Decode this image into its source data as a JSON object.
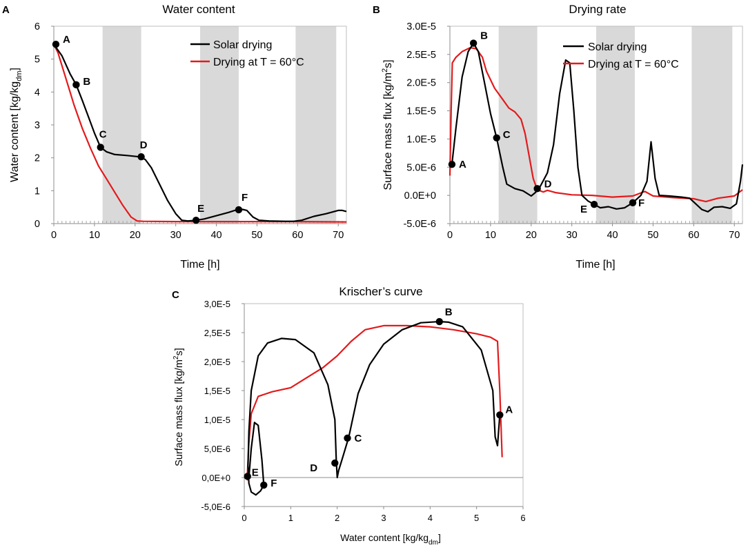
{
  "colors": {
    "solar": "#000000",
    "oven": "#e31a1c",
    "shade": "#d9d9d9"
  },
  "panel_letters": [
    "A",
    "B",
    "C"
  ],
  "legend": {
    "solar": "Solar drying",
    "oven": "Drying at T = 60°C"
  },
  "chart_data": [
    {
      "id": "A",
      "type": "line",
      "title": "Water content",
      "xlabel": "Time [h]",
      "ylabel_main": "Water content [kg/kg",
      "ylabel_sub": "dm",
      "ylabel_end": "]",
      "xlim": [
        0,
        72
      ],
      "ylim": [
        0,
        6
      ],
      "x_ticks": [
        0,
        10,
        20,
        30,
        40,
        50,
        60,
        70
      ],
      "y_ticks": [
        0,
        1,
        2,
        3,
        4,
        5,
        6
      ],
      "x_tick_labels": [
        "0",
        "10",
        "20",
        "30",
        "40",
        "50",
        "60",
        "70"
      ],
      "y_tick_labels": [
        "0",
        "1",
        "2",
        "3",
        "4",
        "5",
        "6"
      ],
      "night_bands": [
        [
          12,
          21.5
        ],
        [
          36,
          45.5
        ],
        [
          59.5,
          69.5
        ]
      ],
      "legend_position": "top-right",
      "series": [
        {
          "name": "Solar drying",
          "points": [
            [
              0,
              5.45
            ],
            [
              2,
              5.1
            ],
            [
              4,
              4.55
            ],
            [
              5.5,
              4.22
            ],
            [
              7,
              3.75
            ],
            [
              8.5,
              3.25
            ],
            [
              10,
              2.75
            ],
            [
              11.5,
              2.32
            ],
            [
              13,
              2.18
            ],
            [
              15,
              2.1
            ],
            [
              18,
              2.07
            ],
            [
              21,
              2.03
            ],
            [
              22.5,
              1.95
            ],
            [
              24,
              1.7
            ],
            [
              26,
              1.2
            ],
            [
              28,
              0.7
            ],
            [
              30,
              0.3
            ],
            [
              31.5,
              0.1
            ],
            [
              33,
              0.08
            ],
            [
              35,
              0.1
            ],
            [
              37,
              0.14
            ],
            [
              40,
              0.24
            ],
            [
              43,
              0.34
            ],
            [
              45,
              0.42
            ],
            [
              46.5,
              0.43
            ],
            [
              47.5,
              0.4
            ],
            [
              49,
              0.2
            ],
            [
              50.5,
              0.1
            ],
            [
              53,
              0.08
            ],
            [
              57,
              0.07
            ],
            [
              59,
              0.07
            ],
            [
              61,
              0.1
            ],
            [
              64,
              0.22
            ],
            [
              67,
              0.3
            ],
            [
              70,
              0.4
            ],
            [
              71,
              0.4
            ],
            [
              72,
              0.37
            ]
          ]
        },
        {
          "name": "Drying at T = 60°C",
          "points": [
            [
              0,
              5.45
            ],
            [
              1,
              5.2
            ],
            [
              3,
              4.4
            ],
            [
              5,
              3.6
            ],
            [
              7,
              2.9
            ],
            [
              9,
              2.3
            ],
            [
              11,
              1.75
            ],
            [
              13,
              1.35
            ],
            [
              15,
              0.95
            ],
            [
              17,
              0.55
            ],
            [
              19,
              0.2
            ],
            [
              20.5,
              0.08
            ],
            [
              22,
              0.07
            ],
            [
              30,
              0.06
            ],
            [
              40,
              0.06
            ],
            [
              50,
              0.06
            ],
            [
              60,
              0.06
            ],
            [
              72,
              0.05
            ]
          ]
        }
      ],
      "markers": [
        {
          "label": "A",
          "x": 0.5,
          "y": 5.45
        },
        {
          "label": "B",
          "x": 5.5,
          "y": 4.22
        },
        {
          "label": "C",
          "x": 11.5,
          "y": 2.32
        },
        {
          "label": "D",
          "x": 21.5,
          "y": 2.03
        },
        {
          "label": "E",
          "x": 35,
          "y": 0.1
        },
        {
          "label": "F",
          "x": 45.5,
          "y": 0.42
        }
      ]
    },
    {
      "id": "B",
      "type": "line",
      "title": "Drying rate",
      "xlabel": "Time [h]",
      "ylabel_main": "Surface mass flux [kg/m",
      "ylabel_sup": "2",
      "ylabel_end": "s]",
      "xlim": [
        0,
        72
      ],
      "ylim": [
        -5e-06,
        3e-05
      ],
      "x_ticks": [
        0,
        10,
        20,
        30,
        40,
        50,
        60,
        70
      ],
      "y_ticks": [
        -5e-06,
        0,
        5e-06,
        1e-05,
        1.5e-05,
        2e-05,
        2.5e-05,
        3e-05
      ],
      "x_tick_labels": [
        "0",
        "10",
        "20",
        "30",
        "40",
        "50",
        "60",
        "70"
      ],
      "y_tick_labels": [
        "-5.0E-6",
        "0.0E+0",
        "5.0E-6",
        "1.0E-5",
        "1.5E-5",
        "2.0E-5",
        "2.5E-5",
        "3.0E-5"
      ],
      "night_bands": [
        [
          12,
          21.5
        ],
        [
          36,
          45.5
        ],
        [
          59.5,
          69.5
        ]
      ],
      "legend_position": "top-right",
      "series": [
        {
          "name": "Solar drying",
          "points": [
            [
              0.5,
              5.5e-06
            ],
            [
              1.5,
              1.2e-05
            ],
            [
              3,
              2.1e-05
            ],
            [
              4.5,
              2.55e-05
            ],
            [
              5.8,
              2.7e-05
            ],
            [
              7,
              2.55e-05
            ],
            [
              8.5,
              2e-05
            ],
            [
              10,
              1.45e-05
            ],
            [
              11.5,
              1.02e-05
            ],
            [
              13,
              5e-06
            ],
            [
              14,
              2e-06
            ],
            [
              16,
              1.2e-06
            ],
            [
              18,
              8e-07
            ],
            [
              20,
              -1e-07
            ],
            [
              21,
              5e-07
            ],
            [
              22,
              1.3e-06
            ],
            [
              24,
              4e-06
            ],
            [
              25.5,
              9e-06
            ],
            [
              27,
              1.8e-05
            ],
            [
              28.5,
              2.4e-05
            ],
            [
              29.5,
              2.35e-05
            ],
            [
              30.5,
              1.5e-05
            ],
            [
              31.5,
              5e-06
            ],
            [
              32.5,
              0
            ],
            [
              34,
              -1e-06
            ],
            [
              35.5,
              -1.6e-06
            ],
            [
              37,
              -2.2e-06
            ],
            [
              39,
              -2e-06
            ],
            [
              41,
              -2.4e-06
            ],
            [
              43,
              -2.2e-06
            ],
            [
              45,
              -1.3e-06
            ],
            [
              47,
              0
            ],
            [
              48.5,
              2.5e-06
            ],
            [
              49.5,
              9.5e-06
            ],
            [
              50.5,
              3e-06
            ],
            [
              51.5,
              0
            ],
            [
              54,
              -1e-07
            ],
            [
              57,
              -3e-07
            ],
            [
              59,
              -5e-07
            ],
            [
              60.5,
              -1.5e-06
            ],
            [
              62,
              -2.5e-06
            ],
            [
              63.5,
              -2.9e-06
            ],
            [
              65,
              -2.1e-06
            ],
            [
              67,
              -2e-06
            ],
            [
              69,
              -2.3e-06
            ],
            [
              70.5,
              -1.5e-06
            ],
            [
              71.5,
              2.5e-06
            ],
            [
              72,
              5.5e-06
            ]
          ]
        },
        {
          "name": "Drying at T = 60°C",
          "points": [
            [
              0,
              3.5e-06
            ],
            [
              0.3,
              1.5e-05
            ],
            [
              0.6,
              2.35e-05
            ],
            [
              1.5,
              2.45e-05
            ],
            [
              3,
              2.55e-05
            ],
            [
              5,
              2.62e-05
            ],
            [
              6.5,
              2.6e-05
            ],
            [
              8,
              2.45e-05
            ],
            [
              9,
              2.2e-05
            ],
            [
              11,
              1.9e-05
            ],
            [
              13,
              1.7e-05
            ],
            [
              14.5,
              1.55e-05
            ],
            [
              16,
              1.48e-05
            ],
            [
              17.5,
              1.35e-05
            ],
            [
              18.5,
              1.1e-05
            ],
            [
              19.5,
              7e-06
            ],
            [
              20.5,
              3e-06
            ],
            [
              21.5,
              1e-06
            ],
            [
              23,
              6e-07
            ],
            [
              24,
              9e-07
            ],
            [
              26,
              5e-07
            ],
            [
              30,
              1e-07
            ],
            [
              35,
              0
            ],
            [
              40,
              -3e-07
            ],
            [
              45,
              -1e-07
            ],
            [
              48,
              7e-07
            ],
            [
              50,
              -1e-07
            ],
            [
              55,
              -4e-07
            ],
            [
              60,
              -6e-07
            ],
            [
              63,
              -1.1e-06
            ],
            [
              66,
              -5e-07
            ],
            [
              70,
              -1e-07
            ],
            [
              72,
              1e-06
            ]
          ]
        }
      ],
      "markers": [
        {
          "label": "A",
          "x": 0.5,
          "y": 5.5e-06
        },
        {
          "label": "B",
          "x": 5.8,
          "y": 2.7e-05
        },
        {
          "label": "C",
          "x": 11.5,
          "y": 1.02e-05
        },
        {
          "label": "D",
          "x": 21.5,
          "y": 1.2e-06
        },
        {
          "label": "E",
          "x": 35.5,
          "y": -1.6e-06
        },
        {
          "label": "F",
          "x": 45,
          "y": -1.3e-06
        }
      ]
    },
    {
      "id": "C",
      "type": "line",
      "title": "Krischer’s curve",
      "xlabel_main": "Water content [kg/kg",
      "xlabel_sub": "dm",
      "xlabel_end": "]",
      "ylabel_main": "Surface mass flux [kg/m",
      "ylabel_sup": "2",
      "ylabel_end": "s]",
      "xlim": [
        0,
        6
      ],
      "ylim": [
        -5e-06,
        3e-05
      ],
      "x_ticks": [
        0,
        1,
        2,
        3,
        4,
        5,
        6
      ],
      "y_ticks": [
        -5e-06,
        0,
        5e-06,
        1e-05,
        1.5e-05,
        2e-05,
        2.5e-05,
        3e-05
      ],
      "x_tick_labels": [
        "0",
        "1",
        "2",
        "3",
        "4",
        "5",
        "6"
      ],
      "y_tick_labels": [
        "-5,0E-6",
        "0,0E+0",
        "5,0E-6",
        "1,0E-5",
        "1,5E-5",
        "2,0E-5",
        "2,5E-5",
        "3,0E-5"
      ],
      "series": [
        {
          "name": "Solar drying",
          "points": [
            [
              5.5,
              1.08e-05
            ],
            [
              5.45,
              5.5e-06
            ],
            [
              5.4,
              7e-06
            ],
            [
              5.35,
              1.5e-05
            ],
            [
              5.1,
              2.2e-05
            ],
            [
              4.7,
              2.6e-05
            ],
            [
              4.4,
              2.68e-05
            ],
            [
              4.2,
              2.69e-05
            ],
            [
              3.8,
              2.67e-05
            ],
            [
              3.4,
              2.55e-05
            ],
            [
              3.0,
              2.3e-05
            ],
            [
              2.7,
              1.95e-05
            ],
            [
              2.45,
              1.45e-05
            ],
            [
              2.25,
              7e-06
            ],
            [
              2.1,
              3e-06
            ],
            [
              2.03,
              1.2e-06
            ],
            [
              2.0,
              0
            ],
            [
              1.98,
              3e-06
            ],
            [
              1.95,
              1e-05
            ],
            [
              1.8,
              1.6e-05
            ],
            [
              1.5,
              2.15e-05
            ],
            [
              1.1,
              2.38e-05
            ],
            [
              0.8,
              2.4e-05
            ],
            [
              0.5,
              2.32e-05
            ],
            [
              0.3,
              2.1e-05
            ],
            [
              0.15,
              1.5e-05
            ],
            [
              0.1,
              8e-06
            ],
            [
              0.08,
              2e-06
            ],
            [
              0.1,
              -1e-06
            ],
            [
              0.15,
              -2.5e-06
            ],
            [
              0.25,
              -3e-06
            ],
            [
              0.35,
              -2.3e-06
            ],
            [
              0.4,
              -1.6e-06
            ],
            [
              0.42,
              -1.3e-06
            ],
            [
              0.38,
              3e-06
            ],
            [
              0.3,
              9e-06
            ],
            [
              0.22,
              9.5e-06
            ],
            [
              0.15,
              5e-06
            ],
            [
              0.1,
              0
            ]
          ]
        },
        {
          "name": "Drying at T = 60°C",
          "points": [
            [
              5.55,
              3.5e-06
            ],
            [
              5.5,
              1.5e-05
            ],
            [
              5.45,
              2.35e-05
            ],
            [
              5.3,
              2.42e-05
            ],
            [
              5.0,
              2.48e-05
            ],
            [
              4.5,
              2.55e-05
            ],
            [
              4.0,
              2.6e-05
            ],
            [
              3.5,
              2.62e-05
            ],
            [
              3.0,
              2.62e-05
            ],
            [
              2.6,
              2.55e-05
            ],
            [
              2.3,
              2.35e-05
            ],
            [
              2.0,
              2.1e-05
            ],
            [
              1.7,
              1.9e-05
            ],
            [
              1.3,
              1.7e-05
            ],
            [
              1.0,
              1.55e-05
            ],
            [
              0.6,
              1.48e-05
            ],
            [
              0.3,
              1.4e-05
            ],
            [
              0.15,
              1.1e-05
            ],
            [
              0.1,
              6e-06
            ],
            [
              0.07,
              1e-06
            ],
            [
              0.06,
              5e-07
            ],
            [
              0.06,
              0
            ],
            [
              0.07,
              -5e-07
            ]
          ]
        }
      ],
      "markers": [
        {
          "label": "A",
          "x": 5.5,
          "y": 1.08e-05
        },
        {
          "label": "B",
          "x": 4.2,
          "y": 2.69e-05
        },
        {
          "label": "C",
          "x": 2.22,
          "y": 6.8e-06
        },
        {
          "label": "D",
          "x": 1.95,
          "y": 2.5e-06
        },
        {
          "label": "E",
          "x": 0.07,
          "y": 2e-07
        },
        {
          "label": "F",
          "x": 0.42,
          "y": -1.3e-06
        }
      ]
    }
  ]
}
